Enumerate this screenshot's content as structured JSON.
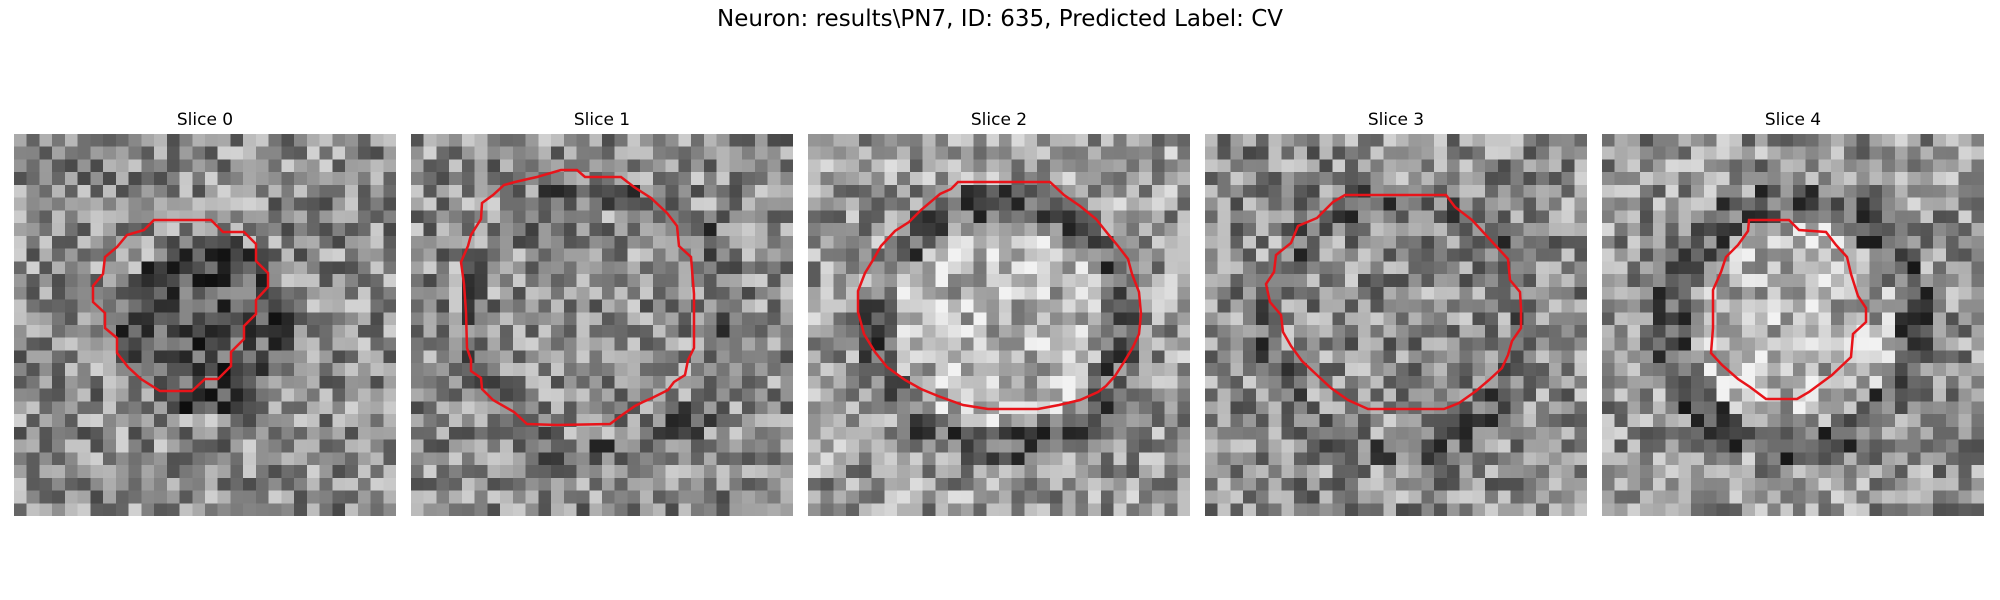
{
  "figure": {
    "title": "Neuron: results\\PN7, ID: 635, Predicted Label: CV"
  },
  "panels": [
    {
      "title": "Slice 0",
      "contour_label": "predicted-outline",
      "mean_gray": 0.55,
      "center_tone": "dark"
    },
    {
      "title": "Slice 1",
      "contour_label": "predicted-outline",
      "mean_gray": 0.55,
      "center_tone": "mixed"
    },
    {
      "title": "Slice 2",
      "contour_label": "predicted-outline",
      "mean_gray": 0.6,
      "center_tone": "light"
    },
    {
      "title": "Slice 3",
      "contour_label": "predicted-outline",
      "mean_gray": 0.55,
      "center_tone": "mixed"
    },
    {
      "title": "Slice 4",
      "contour_label": "predicted-outline",
      "mean_gray": 0.58,
      "center_tone": "light"
    }
  ],
  "colors": {
    "contour": "#e8141a",
    "background": "#ffffff"
  }
}
